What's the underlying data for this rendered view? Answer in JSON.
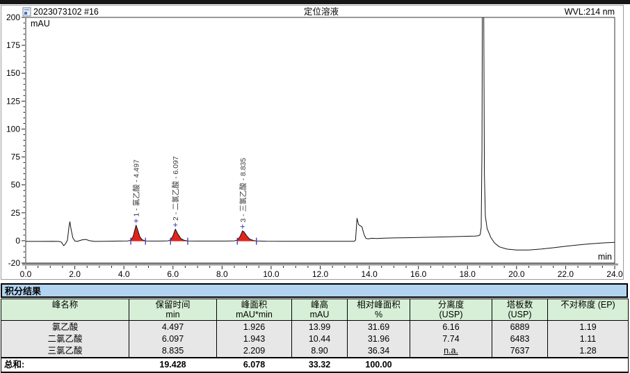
{
  "header": {
    "sample_id": "2023073102 #16",
    "title": "定位溶液",
    "wavelength": "WVL:214 nm"
  },
  "chart": {
    "y_unit": "mAU",
    "x_unit": "min"
  },
  "colors": {
    "title_bar_blue": "#b3d4f0",
    "table_header_green": "#d6efd6",
    "table_row_gray": "#e7e7e7",
    "peak_fill_red": "#e2251c",
    "integration_blue": "#3f3fbf",
    "curve_black": "#111111"
  },
  "chart_data": {
    "type": "line",
    "title": "定位溶液",
    "signal": "WVL:214 nm",
    "xlabel": "min",
    "ylabel": "mAU",
    "xlim": [
      0.0,
      24.0
    ],
    "ylim": [
      -20,
      200
    ],
    "x_major_tick_step": 2.0,
    "x_minor_tick_step": 0.5,
    "y_major_ticks": [
      -20,
      0,
      25,
      50,
      75,
      100,
      125,
      150,
      175,
      200
    ],
    "y_minor_tick_step": 5,
    "grid": false,
    "peaks": [
      {
        "number": 1,
        "name": "氯乙酸",
        "label": "1 - 氯乙酸 - 4.497",
        "retention_min": 4.497,
        "height_mau": 13.99,
        "area_mau_min": 1.926,
        "start_min": 4.28,
        "end_min": 4.88
      },
      {
        "number": 2,
        "name": "二氯乙酸",
        "label": "2 - 二氯乙酸 - 6.097",
        "retention_min": 6.097,
        "height_mau": 10.44,
        "area_mau_min": 1.943,
        "start_min": 5.9,
        "end_min": 6.6
      },
      {
        "number": 3,
        "name": "三氯乙酸",
        "label": "3 - 三氯乙酸 - 8.835",
        "retention_min": 8.835,
        "height_mau": 8.9,
        "area_mau_min": 2.209,
        "start_min": 8.62,
        "end_min": 9.4
      }
    ],
    "unlabeled_features": [
      {
        "type": "injection-disturbance",
        "time_min": 1.8,
        "height_mau": 17
      },
      {
        "type": "baseline-step",
        "time_min": 13.5,
        "height_mau": 20
      },
      {
        "type": "off-scale-peak",
        "time_min": 18.62,
        "height_mau": ">200"
      }
    ],
    "curve_points": [
      [
        0,
        -0.6
      ],
      [
        0.6,
        -0.6
      ],
      [
        1.1,
        -0.5
      ],
      [
        1.35,
        -0.6
      ],
      [
        1.45,
        -1.2
      ],
      [
        1.55,
        -4.5
      ],
      [
        1.63,
        -2.5
      ],
      [
        1.7,
        0.5
      ],
      [
        1.76,
        12
      ],
      [
        1.8,
        17
      ],
      [
        1.85,
        10
      ],
      [
        1.92,
        2.5
      ],
      [
        2.0,
        -0.2
      ],
      [
        2.1,
        -0.6
      ],
      [
        2.3,
        0.8
      ],
      [
        2.45,
        1.1
      ],
      [
        2.6,
        0
      ],
      [
        2.8,
        -0.6
      ],
      [
        3.2,
        -0.5
      ],
      [
        3.8,
        -0.3
      ],
      [
        4.15,
        -0.2
      ],
      [
        4.28,
        0.3
      ],
      [
        4.38,
        4
      ],
      [
        4.45,
        10
      ],
      [
        4.497,
        13.99
      ],
      [
        4.56,
        10
      ],
      [
        4.65,
        3.5
      ],
      [
        4.75,
        0.8
      ],
      [
        4.88,
        -0.2
      ],
      [
        5.1,
        -0.3
      ],
      [
        5.5,
        -0.3
      ],
      [
        5.8,
        -0.1
      ],
      [
        5.9,
        0.6
      ],
      [
        6.0,
        4.5
      ],
      [
        6.097,
        10.44
      ],
      [
        6.2,
        6
      ],
      [
        6.32,
        2
      ],
      [
        6.45,
        0.4
      ],
      [
        6.6,
        -0.2
      ],
      [
        7.0,
        -0.3
      ],
      [
        7.6,
        -0.3
      ],
      [
        8.2,
        -0.3
      ],
      [
        8.5,
        -0.1
      ],
      [
        8.62,
        0.5
      ],
      [
        8.74,
        4
      ],
      [
        8.835,
        8.9
      ],
      [
        8.9,
        7.8
      ],
      [
        9.0,
        4.5
      ],
      [
        9.12,
        1.5
      ],
      [
        9.28,
        0.2
      ],
      [
        9.4,
        -0.2
      ],
      [
        9.8,
        -0.4
      ],
      [
        10.5,
        -0.5
      ],
      [
        11.5,
        -0.5
      ],
      [
        12.5,
        -0.5
      ],
      [
        13.1,
        -0.5
      ],
      [
        13.38,
        -0.5
      ],
      [
        13.44,
        0.5
      ],
      [
        13.5,
        20
      ],
      [
        13.56,
        14.5
      ],
      [
        13.62,
        13.5
      ],
      [
        13.7,
        12.5
      ],
      [
        13.78,
        6
      ],
      [
        13.86,
        2.2
      ],
      [
        13.95,
        1.6
      ],
      [
        14.1,
        2.2
      ],
      [
        14.3,
        2.0
      ],
      [
        14.6,
        2.3
      ],
      [
        15.0,
        2.5
      ],
      [
        15.5,
        2.7
      ],
      [
        16.0,
        2.9
      ],
      [
        16.5,
        3.1
      ],
      [
        17.0,
        3.4
      ],
      [
        17.5,
        3.7
      ],
      [
        18.0,
        4.0
      ],
      [
        18.3,
        4.2
      ],
      [
        18.45,
        4.4
      ],
      [
        18.52,
        5.5
      ],
      [
        18.56,
        12
      ],
      [
        18.59,
        80
      ],
      [
        18.61,
        230
      ],
      [
        18.66,
        230
      ],
      [
        18.69,
        60
      ],
      [
        18.73,
        22
      ],
      [
        18.8,
        11
      ],
      [
        18.95,
        3
      ],
      [
        19.1,
        -2
      ],
      [
        19.3,
        -5.5
      ],
      [
        19.6,
        -7.5
      ],
      [
        20.0,
        -8.3
      ],
      [
        20.5,
        -8.3
      ],
      [
        21.0,
        -7.5
      ],
      [
        21.5,
        -6.3
      ],
      [
        22.0,
        -5.0
      ],
      [
        22.5,
        -3.8
      ],
      [
        23.0,
        -2.8
      ],
      [
        23.5,
        -2.0
      ],
      [
        24.0,
        -1.5
      ]
    ]
  },
  "table": {
    "title": "积分结果",
    "columns": [
      {
        "name": "峰名称",
        "unit": ""
      },
      {
        "name": "保留时间",
        "unit": "min"
      },
      {
        "name": "峰面积",
        "unit": "mAU*min"
      },
      {
        "name": "峰高",
        "unit": "mAU"
      },
      {
        "name": "相对峰面积",
        "unit": "%"
      },
      {
        "name": "分离度",
        "unit": "(USP)"
      },
      {
        "name": "塔板数",
        "unit": "(USP)"
      },
      {
        "name": "不对称度 (EP)",
        "unit": ""
      }
    ],
    "rows": [
      [
        "氯乙酸",
        "4.497",
        "1.926",
        "13.99",
        "31.69",
        "6.16",
        "6889",
        "1.19"
      ],
      [
        "二氯乙酸",
        "6.097",
        "1.943",
        "10.44",
        "31.96",
        "7.74",
        "6483",
        "1.11"
      ],
      [
        "三氯乙酸",
        "8.835",
        "2.209",
        "8.90",
        "36.34",
        "n.a.",
        "7637",
        "1.28"
      ]
    ],
    "underline_cell": {
      "row": 2,
      "col": 5
    },
    "total": {
      "label": "总和:",
      "retention": "19.428",
      "area": "6.078",
      "height": "33.32",
      "rel_area": "100.00"
    }
  }
}
